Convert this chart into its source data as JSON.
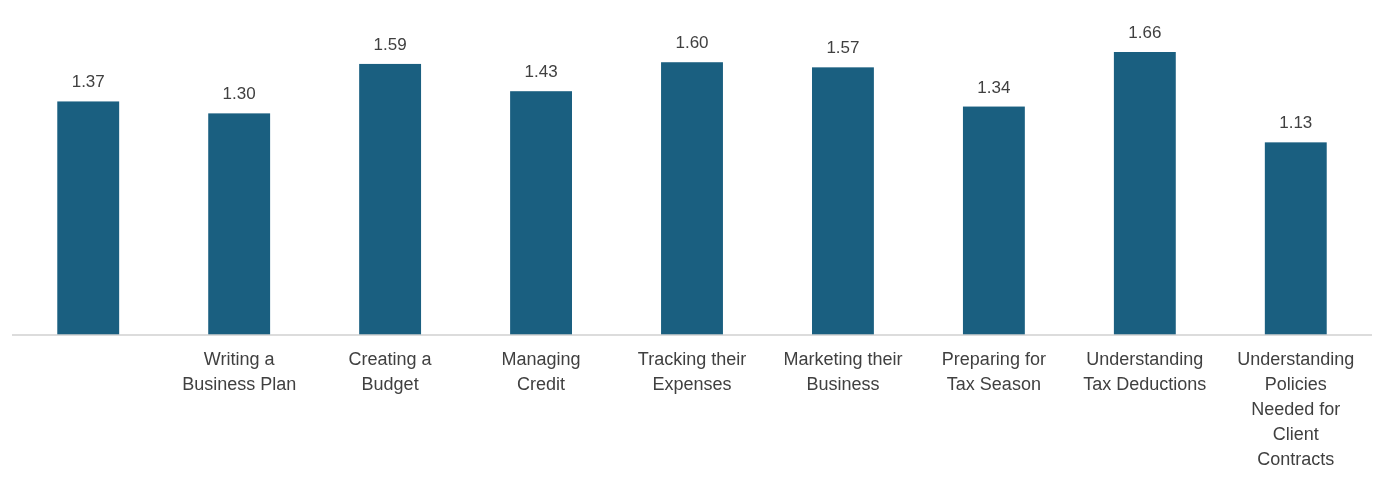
{
  "chart_data": {
    "type": "bar",
    "categories": [
      null,
      "Writing a Business Plan",
      "Creating a Budget",
      "Managing Credit",
      "Tracking their Expenses",
      "Marketing their Business",
      "Preparing for Tax Season",
      "Understanding Tax Deductions",
      "Understanding Policies Needed for Client Contracts"
    ],
    "values": [
      1.37,
      1.3,
      1.59,
      1.43,
      1.6,
      1.57,
      1.34,
      1.66,
      1.13
    ],
    "value_labels": [
      "1.37",
      "1.30",
      "1.59",
      "1.43",
      "1.60",
      "1.57",
      "1.34",
      "1.66",
      "1.13"
    ],
    "color": "#1a5f80",
    "tick_labels": "x"
  }
}
